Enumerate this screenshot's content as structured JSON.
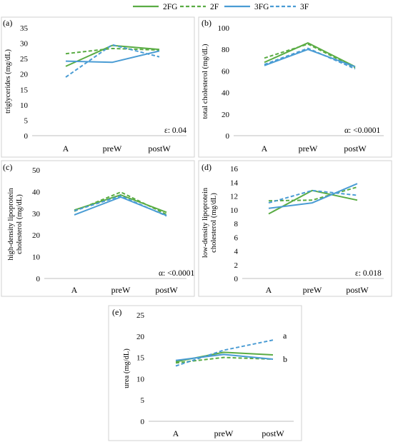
{
  "legend": [
    {
      "name": "2FG",
      "color": "#5aac44",
      "dash": false
    },
    {
      "name": "2F",
      "color": "#5aac44",
      "dash": true
    },
    {
      "name": "3FG",
      "color": "#4a9cd4",
      "dash": false
    },
    {
      "name": "3F",
      "color": "#4a9cd4",
      "dash": true
    }
  ],
  "chart_data": [
    {
      "panel": "(a)",
      "type": "line",
      "categories": [
        "A",
        "preW",
        "postW"
      ],
      "ylabel": "triglycerides (mg/dL)",
      "ylim": [
        0,
        35
      ],
      "ystep": 5,
      "series": [
        {
          "name": "2FG",
          "values": [
            22.5,
            29.3,
            28.0
          ]
        },
        {
          "name": "2F",
          "values": [
            26.6,
            28.3,
            27.8
          ]
        },
        {
          "name": "3FG",
          "values": [
            24.2,
            23.8,
            27.5
          ]
        },
        {
          "name": "3F",
          "values": [
            19.0,
            29.5,
            25.6
          ]
        }
      ],
      "stat": "ε: 0.04",
      "annotations": []
    },
    {
      "panel": "(b)",
      "type": "line",
      "categories": [
        "A",
        "preW",
        "postW"
      ],
      "ylabel": "total cholesterol (mg/dL)",
      "ylim": [
        0,
        100
      ],
      "ystep": 20,
      "series": [
        {
          "name": "2FG",
          "values": [
            68,
            86,
            64
          ]
        },
        {
          "name": "2F",
          "values": [
            72,
            85,
            63
          ]
        },
        {
          "name": "3FG",
          "values": [
            65,
            80,
            64
          ]
        },
        {
          "name": "3F",
          "values": [
            66,
            81,
            62
          ]
        }
      ],
      "stat": "α: <0.0001",
      "annotations": []
    },
    {
      "panel": "(c)",
      "type": "line",
      "categories": [
        "A",
        "preW",
        "postW"
      ],
      "ylabel": "high-density lipoprotein cholesterol (mg/dL)",
      "ylim": [
        0,
        50
      ],
      "ystep": 10,
      "series": [
        {
          "name": "2FG",
          "values": [
            31.5,
            38.5,
            30.5
          ]
        },
        {
          "name": "2F",
          "values": [
            31.0,
            39.8,
            29.5
          ]
        },
        {
          "name": "3FG",
          "values": [
            29.3,
            37.5,
            29.0
          ]
        },
        {
          "name": "3F",
          "values": [
            31.2,
            38.0,
            28.8
          ]
        }
      ],
      "stat": "α: <0.0001",
      "annotations": []
    },
    {
      "panel": "(d)",
      "type": "line",
      "categories": [
        "A",
        "preW",
        "postW"
      ],
      "ylabel": "low-density lipoprotein cholesterol (mg/dL)",
      "ylim": [
        0,
        16
      ],
      "ystep": 2,
      "series": [
        {
          "name": "2FG",
          "values": [
            9.4,
            12.8,
            11.4
          ]
        },
        {
          "name": "2F",
          "values": [
            11.3,
            11.4,
            13.3
          ]
        },
        {
          "name": "3FG",
          "values": [
            10.2,
            11.0,
            13.8
          ]
        },
        {
          "name": "3F",
          "values": [
            11.0,
            12.8,
            12.1
          ]
        }
      ],
      "stat": "ε: 0.018",
      "annotations": []
    },
    {
      "panel": "(e)",
      "type": "line",
      "categories": [
        "A",
        "preW",
        "postW"
      ],
      "ylabel": "urea (mg/dL)",
      "ylim": [
        0,
        25
      ],
      "ystep": 5,
      "series": [
        {
          "name": "2FG",
          "values": [
            14.0,
            16.2,
            15.6
          ]
        },
        {
          "name": "2F",
          "values": [
            13.7,
            15.0,
            14.6
          ]
        },
        {
          "name": "3FG",
          "values": [
            14.3,
            15.7,
            14.6
          ]
        },
        {
          "name": "3F",
          "values": [
            13.0,
            16.7,
            19.1
          ]
        }
      ],
      "stat": "",
      "annotations": [
        {
          "text": "a",
          "series": "3F",
          "index": 2
        },
        {
          "text": "b",
          "series": "2FG",
          "index": 2
        }
      ]
    }
  ]
}
